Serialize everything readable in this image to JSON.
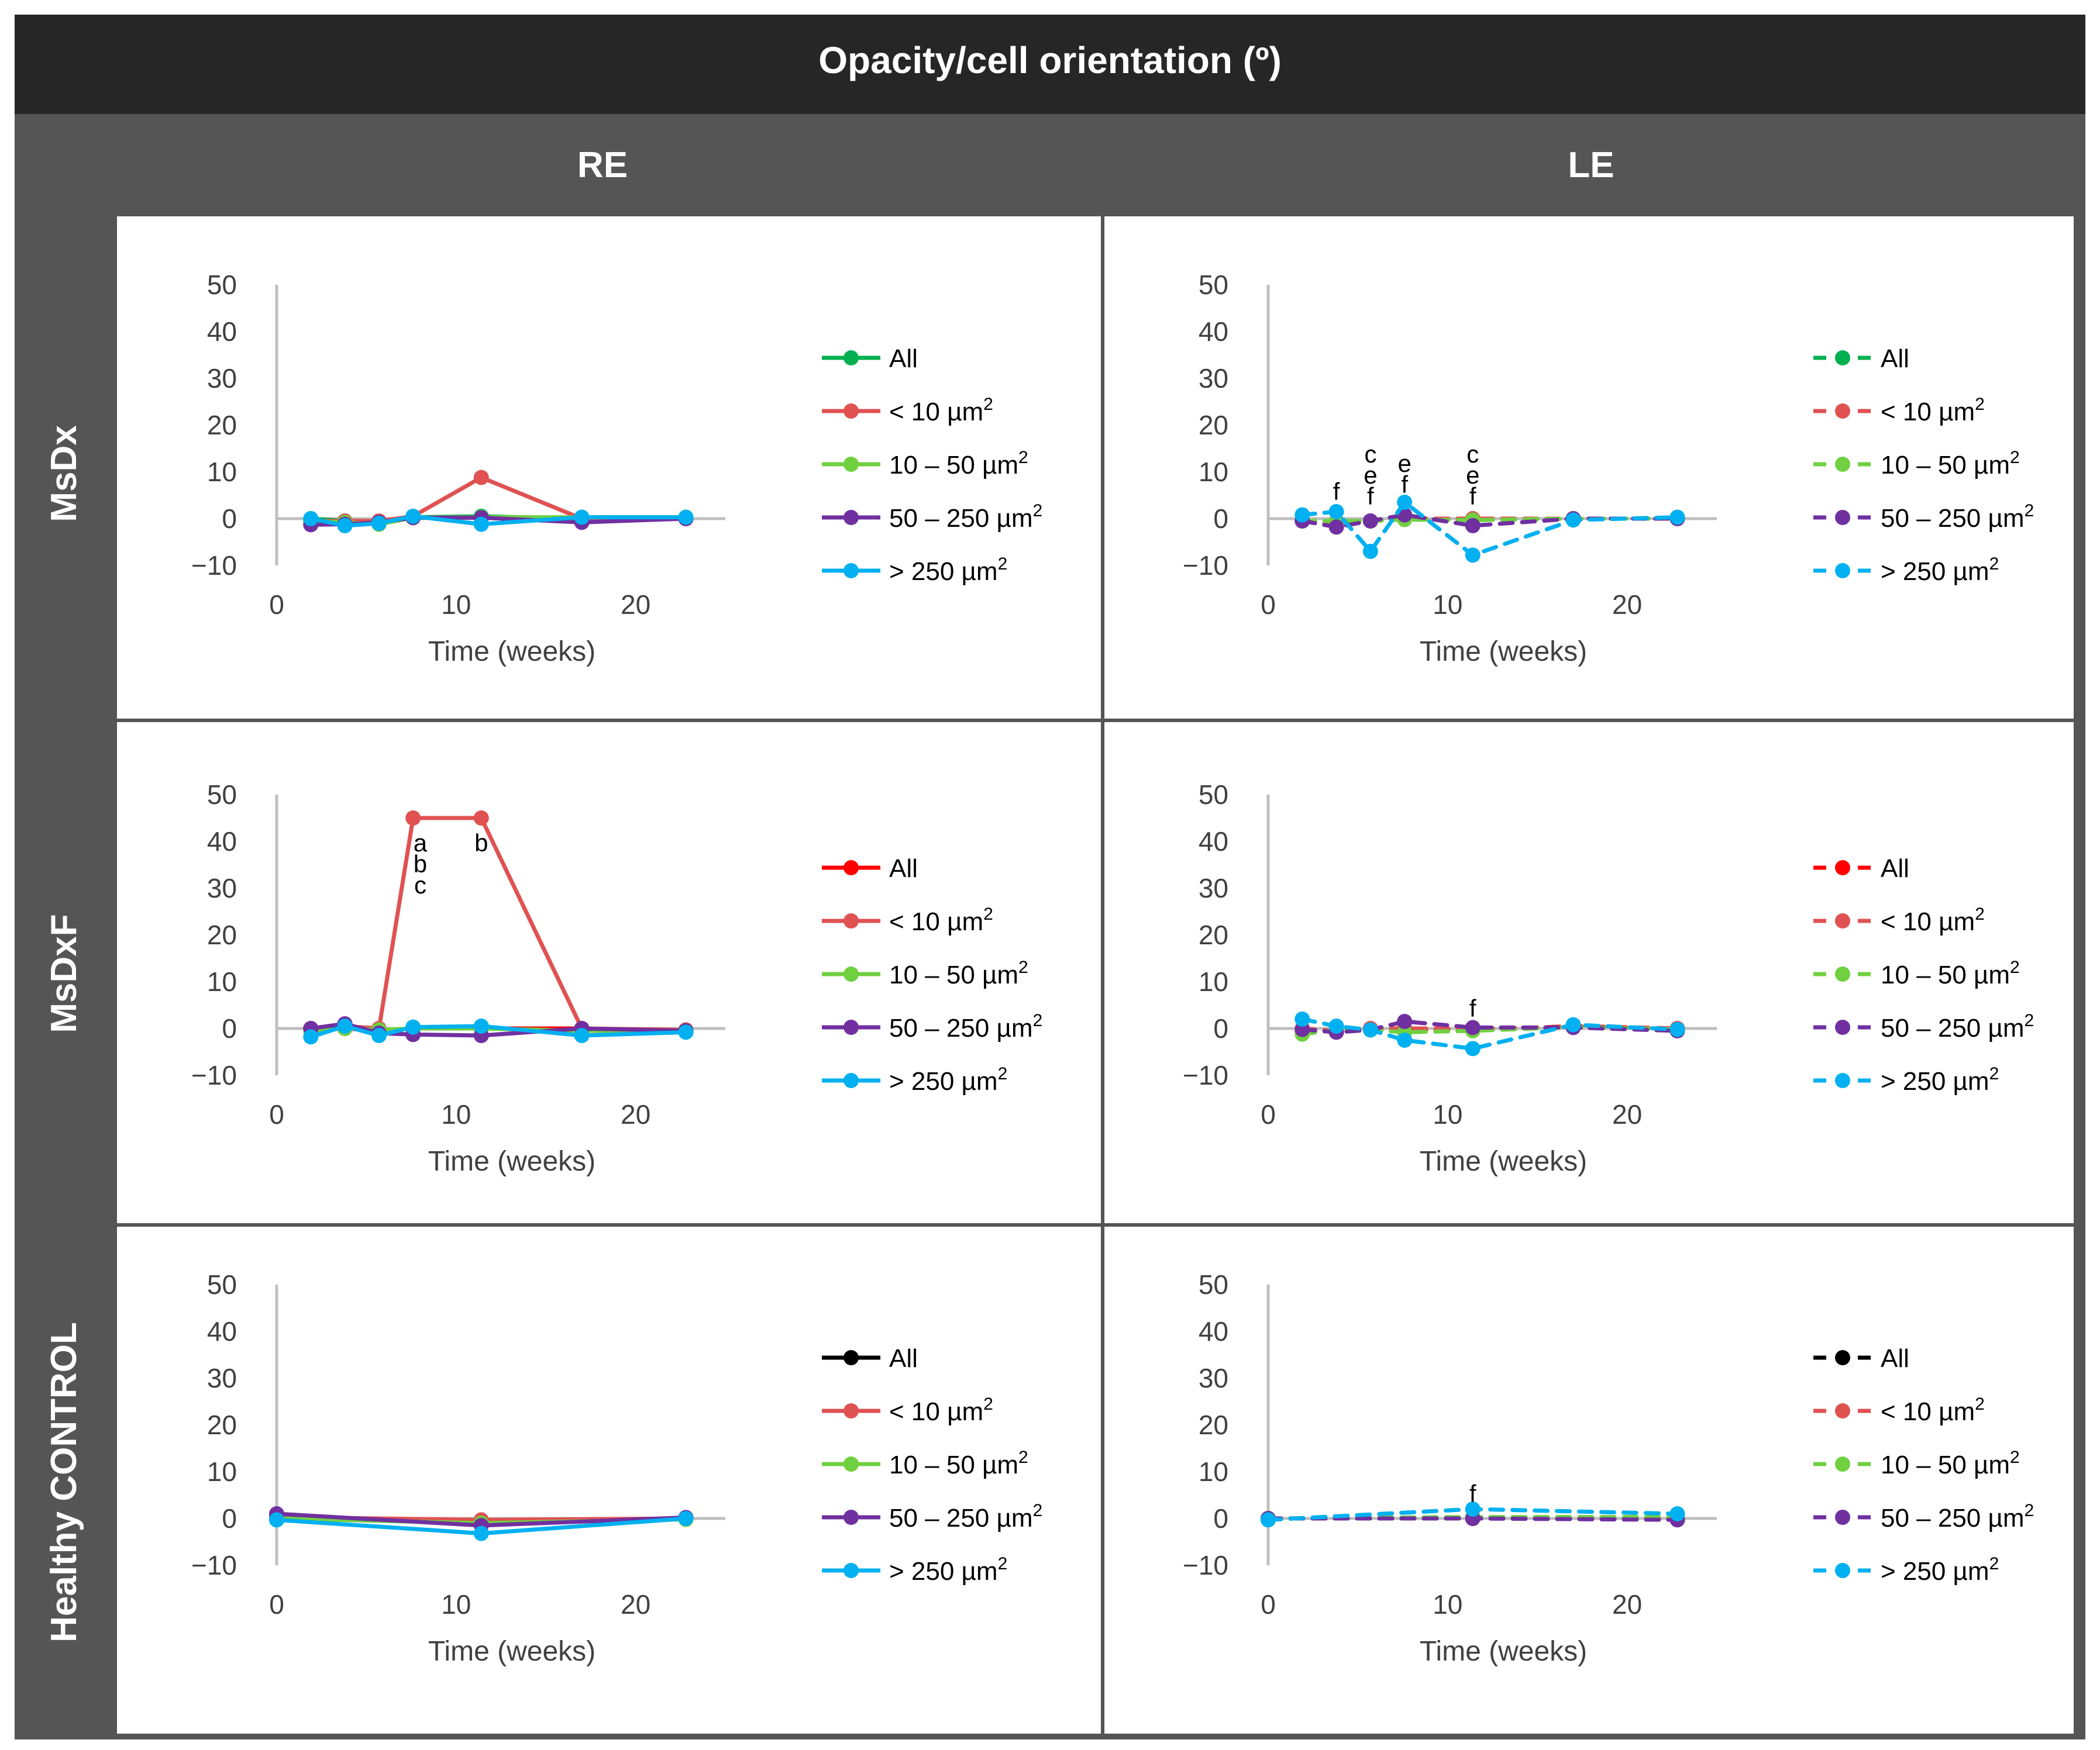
{
  "title": "Opacity/cell orientation (º)",
  "columns": [
    "RE",
    "LE"
  ],
  "rows": [
    "MsDx",
    "MsDxF",
    "Healthy CONTROL"
  ],
  "colors": {
    "frame_dark": "#262626",
    "frame_mid": "#555555",
    "grid_axis": "#bfbfbf",
    "green_all": "#00b050",
    "red_all": "#ff0000",
    "black_all": "#000000",
    "lt10": "#e05252",
    "r10_50": "#70d040",
    "r50_250": "#7030a0",
    "gt250": "#00b0f0"
  },
  "chart_data": [
    {
      "id": "msdx-re",
      "row": "MsDx",
      "col": "RE",
      "type": "line",
      "dashed": false,
      "xlabel": "Time (weeks)",
      "ylabel": "",
      "xlim": [
        0,
        25
      ],
      "ylim": [
        -10,
        50
      ],
      "xticks": [
        "0",
        "10",
        "20"
      ],
      "yticks": [
        "50",
        "40",
        "30",
        "20",
        "10",
        "0",
        "−10"
      ],
      "legend": [
        "All",
        "< 10 µm2",
        "10 – 50 µm2",
        "50 – 250 µm2",
        "> 250 µm2"
      ],
      "series": [
        {
          "name": "All",
          "color": "green_all",
          "x": [
            1.9,
            3.8,
            5.7,
            7.6,
            11.4,
            17,
            22.8
          ],
          "y": [
            0,
            -0.5,
            -0.8,
            0.3,
            0.5,
            0,
            0
          ]
        },
        {
          "name": "< 10 µm2",
          "color": "lt10",
          "x": [
            1.9,
            3.8,
            5.7,
            7.6,
            11.4,
            17,
            22.8
          ],
          "y": [
            -0.5,
            -0.5,
            -0.5,
            0.5,
            8.8,
            0,
            0
          ]
        },
        {
          "name": "10 – 50 µm2",
          "color": "r10_50",
          "x": [
            1.9,
            3.8,
            5.7,
            7.6,
            11.4,
            17,
            22.8
          ],
          "y": [
            -0.5,
            -0.8,
            -1.2,
            0.2,
            0.3,
            0.3,
            0.3
          ]
        },
        {
          "name": "50 – 250 µm2",
          "color": "r50_250",
          "x": [
            1.9,
            3.8,
            5.7,
            7.6,
            11.4,
            17,
            22.8
          ],
          "y": [
            -1.3,
            -1.2,
            -0.8,
            0.2,
            0.2,
            -0.8,
            0
          ]
        },
        {
          "name": "> 250 µm2",
          "color": "gt250",
          "x": [
            1.9,
            3.8,
            5.7,
            7.6,
            11.4,
            17,
            22.8
          ],
          "y": [
            0,
            -1.5,
            -1,
            0.5,
            -1.2,
            0.3,
            0.3
          ]
        }
      ],
      "annotations": []
    },
    {
      "id": "msdx-le",
      "row": "MsDx",
      "col": "LE",
      "type": "line",
      "dashed": true,
      "xlabel": "Time (weeks)",
      "ylabel": "",
      "xlim": [
        0,
        25
      ],
      "ylim": [
        -10,
        50
      ],
      "xticks": [
        "0",
        "10",
        "20"
      ],
      "yticks": [
        "50",
        "40",
        "30",
        "20",
        "10",
        "0",
        "−10"
      ],
      "legend": [
        "All",
        "< 10 µm2",
        "10 – 50 µm2",
        "50 – 250 µm2",
        "> 250 µm2"
      ],
      "series": [
        {
          "name": "All",
          "color": "green_all",
          "x": [
            1.9,
            3.8,
            5.7,
            7.6,
            11.4,
            17,
            22.8
          ],
          "y": [
            -0.5,
            -0.5,
            -0.5,
            0,
            -0.3,
            0,
            0
          ]
        },
        {
          "name": "< 10 µm2",
          "color": "lt10",
          "x": [
            1.9,
            3.8,
            5.7,
            7.6,
            11.4,
            17,
            22.8
          ],
          "y": [
            -0.5,
            -1,
            -0.5,
            0,
            0,
            0,
            0
          ]
        },
        {
          "name": "10 – 50 µm2",
          "color": "r10_50",
          "x": [
            1.9,
            3.8,
            5.7,
            7.6,
            11.4,
            17,
            22.8
          ],
          "y": [
            -0.5,
            -0.5,
            -0.5,
            -0.2,
            -0.3,
            0,
            0
          ]
        },
        {
          "name": "50 – 250 µm2",
          "color": "r50_250",
          "x": [
            1.9,
            3.8,
            5.7,
            7.6,
            11.4,
            17,
            22.8
          ],
          "y": [
            -0.5,
            -1.8,
            -0.5,
            0.8,
            -1.5,
            0,
            0
          ]
        },
        {
          "name": "> 250 µm2",
          "color": "gt250",
          "x": [
            1.9,
            3.8,
            5.7,
            7.6,
            11.4,
            17,
            22.8
          ],
          "y": [
            0.8,
            1.5,
            -7,
            3.5,
            -7.8,
            -0.3,
            0.3
          ]
        }
      ],
      "annotations": [
        {
          "x": 3.8,
          "y": 4,
          "lines": [
            "f"
          ]
        },
        {
          "x": 5.7,
          "y": 3,
          "lines": [
            "c",
            "e",
            "f"
          ]
        },
        {
          "x": 7.6,
          "y": 5.5,
          "lines": [
            "e",
            "f"
          ]
        },
        {
          "x": 11.4,
          "y": 3,
          "lines": [
            "c",
            "e",
            "f"
          ]
        }
      ]
    },
    {
      "id": "msdxf-re",
      "row": "MsDxF",
      "col": "RE",
      "type": "line",
      "dashed": false,
      "xlabel": "Time (weeks)",
      "ylabel": "",
      "xlim": [
        0,
        25
      ],
      "ylim": [
        -10,
        50
      ],
      "xticks": [
        "0",
        "10",
        "20"
      ],
      "yticks": [
        "50",
        "40",
        "30",
        "20",
        "10",
        "0",
        "−10"
      ],
      "legend": [
        "All",
        "< 10 µm2",
        "10 – 50 µm2",
        "50 – 250 µm2",
        "> 250 µm2"
      ],
      "series": [
        {
          "name": "All",
          "color": "red_all",
          "x": [
            1.9,
            3.8,
            5.7,
            7.6,
            11.4,
            17,
            22.8
          ],
          "y": [
            0,
            0,
            -0.5,
            0,
            0,
            0,
            -0.5
          ]
        },
        {
          "name": "< 10 µm2",
          "color": "lt10",
          "x": [
            1.9,
            3.8,
            5.7,
            7.6,
            11.4,
            17,
            22.8
          ],
          "y": [
            0,
            0.5,
            0,
            45,
            45,
            0,
            -0.3
          ]
        },
        {
          "name": "10 – 50 µm2",
          "color": "r10_50",
          "x": [
            1.9,
            3.8,
            5.7,
            7.6,
            11.4,
            17,
            22.8
          ],
          "y": [
            -0.5,
            0,
            -0.3,
            0,
            0,
            -0.5,
            -0.5
          ]
        },
        {
          "name": "50 – 250 µm2",
          "color": "r50_250",
          "x": [
            1.9,
            3.8,
            5.7,
            7.6,
            11.4,
            17,
            22.8
          ],
          "y": [
            0,
            1,
            -1,
            -1.3,
            -1.5,
            0,
            -0.5
          ]
        },
        {
          "name": "> 250 µm2",
          "color": "gt250",
          "x": [
            1.9,
            3.8,
            5.7,
            7.6,
            11.4,
            17,
            22.8
          ],
          "y": [
            -1.8,
            0.5,
            -1.5,
            0.3,
            0.5,
            -1.5,
            -0.8
          ]
        }
      ],
      "annotations": [
        {
          "x": 8,
          "y": 43.5,
          "lines": [
            "a",
            "b",
            "c"
          ],
          "dir": "below"
        },
        {
          "x": 11.4,
          "y": 43.5,
          "lines": [
            "b"
          ],
          "dir": "below"
        }
      ]
    },
    {
      "id": "msdxf-le",
      "row": "MsDxF",
      "col": "LE",
      "type": "line",
      "dashed": true,
      "xlabel": "Time (weeks)",
      "ylabel": "",
      "xlim": [
        0,
        25
      ],
      "ylim": [
        -10,
        50
      ],
      "xticks": [
        "0",
        "10",
        "20"
      ],
      "yticks": [
        "50",
        "40",
        "30",
        "20",
        "10",
        "0",
        "−10"
      ],
      "legend": [
        "All",
        "< 10 µm2",
        "10 – 50 µm2",
        "50 – 250 µm2",
        "> 250 µm2"
      ],
      "series": [
        {
          "name": "All",
          "color": "red_all",
          "x": [
            1.9,
            3.8,
            5.7,
            7.6,
            11.4,
            17,
            22.8
          ],
          "y": [
            -0.5,
            -0.5,
            0,
            -0.3,
            -0.3,
            0.5,
            0
          ]
        },
        {
          "name": "< 10 µm2",
          "color": "lt10",
          "x": [
            1.9,
            3.8,
            5.7,
            7.6,
            11.4,
            17,
            22.8
          ],
          "y": [
            0,
            -0.5,
            0,
            0,
            0,
            0.3,
            0
          ]
        },
        {
          "name": "10 – 50 µm2",
          "color": "r10_50",
          "x": [
            1.9,
            3.8,
            5.7,
            7.6,
            11.4,
            17,
            22.8
          ],
          "y": [
            -1.2,
            -0.3,
            -0.3,
            -0.8,
            -0.5,
            0.3,
            -0.2
          ]
        },
        {
          "name": "50 – 250 µm2",
          "color": "r50_250",
          "x": [
            1.9,
            3.8,
            5.7,
            7.6,
            11.4,
            17,
            22.8
          ],
          "y": [
            -0.2,
            -0.8,
            -0.3,
            1.5,
            0.2,
            0.2,
            -0.5
          ]
        },
        {
          "name": "> 250 µm2",
          "color": "gt250",
          "x": [
            1.9,
            3.8,
            5.7,
            7.6,
            11.4,
            17,
            22.8
          ],
          "y": [
            2,
            0.5,
            -0.3,
            -2.5,
            -4.3,
            0.8,
            -0.2
          ]
        }
      ],
      "annotations": [
        {
          "x": 11.4,
          "y": 2.5,
          "lines": [
            "f"
          ]
        }
      ]
    },
    {
      "id": "control-re",
      "row": "Healthy CONTROL",
      "col": "RE",
      "type": "line",
      "dashed": false,
      "xlabel": "Time (weeks)",
      "ylabel": "",
      "xlim": [
        0,
        25
      ],
      "ylim": [
        -10,
        50
      ],
      "xticks": [
        "0",
        "10",
        "20"
      ],
      "yticks": [
        "50",
        "40",
        "30",
        "20",
        "10",
        "0",
        "−10"
      ],
      "legend": [
        "All",
        "< 10 µm2",
        "10 – 50 µm2",
        "50 – 250 µm2",
        "> 250 µm2"
      ],
      "series": [
        {
          "name": "All",
          "color": "black_all",
          "x": [
            0,
            11.4,
            22.8
          ],
          "y": [
            0.3,
            -0.5,
            0
          ]
        },
        {
          "name": "< 10 µm2",
          "color": "lt10",
          "x": [
            0,
            11.4,
            22.8
          ],
          "y": [
            0.3,
            -0.3,
            0
          ]
        },
        {
          "name": "10 – 50 µm2",
          "color": "r10_50",
          "x": [
            0,
            11.4,
            22.8
          ],
          "y": [
            0,
            -1,
            -0.2
          ]
        },
        {
          "name": "50 – 250 µm2",
          "color": "r50_250",
          "x": [
            0,
            11.4,
            22.8
          ],
          "y": [
            1,
            -1.5,
            0.2
          ]
        },
        {
          "name": "> 250 µm2",
          "color": "gt250",
          "x": [
            0,
            11.4,
            22.8
          ],
          "y": [
            -0.3,
            -3.2,
            0
          ]
        }
      ],
      "annotations": []
    },
    {
      "id": "control-le",
      "row": "Healthy CONTROL",
      "col": "LE",
      "type": "line",
      "dashed": true,
      "xlabel": "Time (weeks)",
      "ylabel": "",
      "xlim": [
        0,
        25
      ],
      "ylim": [
        -10,
        50
      ],
      "xticks": [
        "0",
        "10",
        "20"
      ],
      "yticks": [
        "50",
        "40",
        "30",
        "20",
        "10",
        "0",
        "−10"
      ],
      "legend": [
        "All",
        "< 10 µm2",
        "10 – 50 µm2",
        "50 – 250 µm2",
        "> 250 µm2"
      ],
      "series": [
        {
          "name": "All",
          "color": "black_all",
          "x": [
            0,
            11.4,
            22.8
          ],
          "y": [
            0,
            0,
            0
          ]
        },
        {
          "name": "< 10 µm2",
          "color": "lt10",
          "x": [
            0,
            11.4,
            22.8
          ],
          "y": [
            0,
            0,
            0
          ]
        },
        {
          "name": "10 – 50 µm2",
          "color": "r10_50",
          "x": [
            0,
            11.4,
            22.8
          ],
          "y": [
            0,
            0.3,
            0.3
          ]
        },
        {
          "name": "50 – 250 µm2",
          "color": "r50_250",
          "x": [
            0,
            11.4,
            22.8
          ],
          "y": [
            0,
            0,
            -0.3
          ]
        },
        {
          "name": "> 250 µm2",
          "color": "gt250",
          "x": [
            0,
            11.4,
            22.8
          ],
          "y": [
            -0.3,
            2,
            1
          ]
        }
      ],
      "annotations": [
        {
          "x": 11.4,
          "y": 3.5,
          "lines": [
            "f"
          ]
        }
      ]
    }
  ]
}
